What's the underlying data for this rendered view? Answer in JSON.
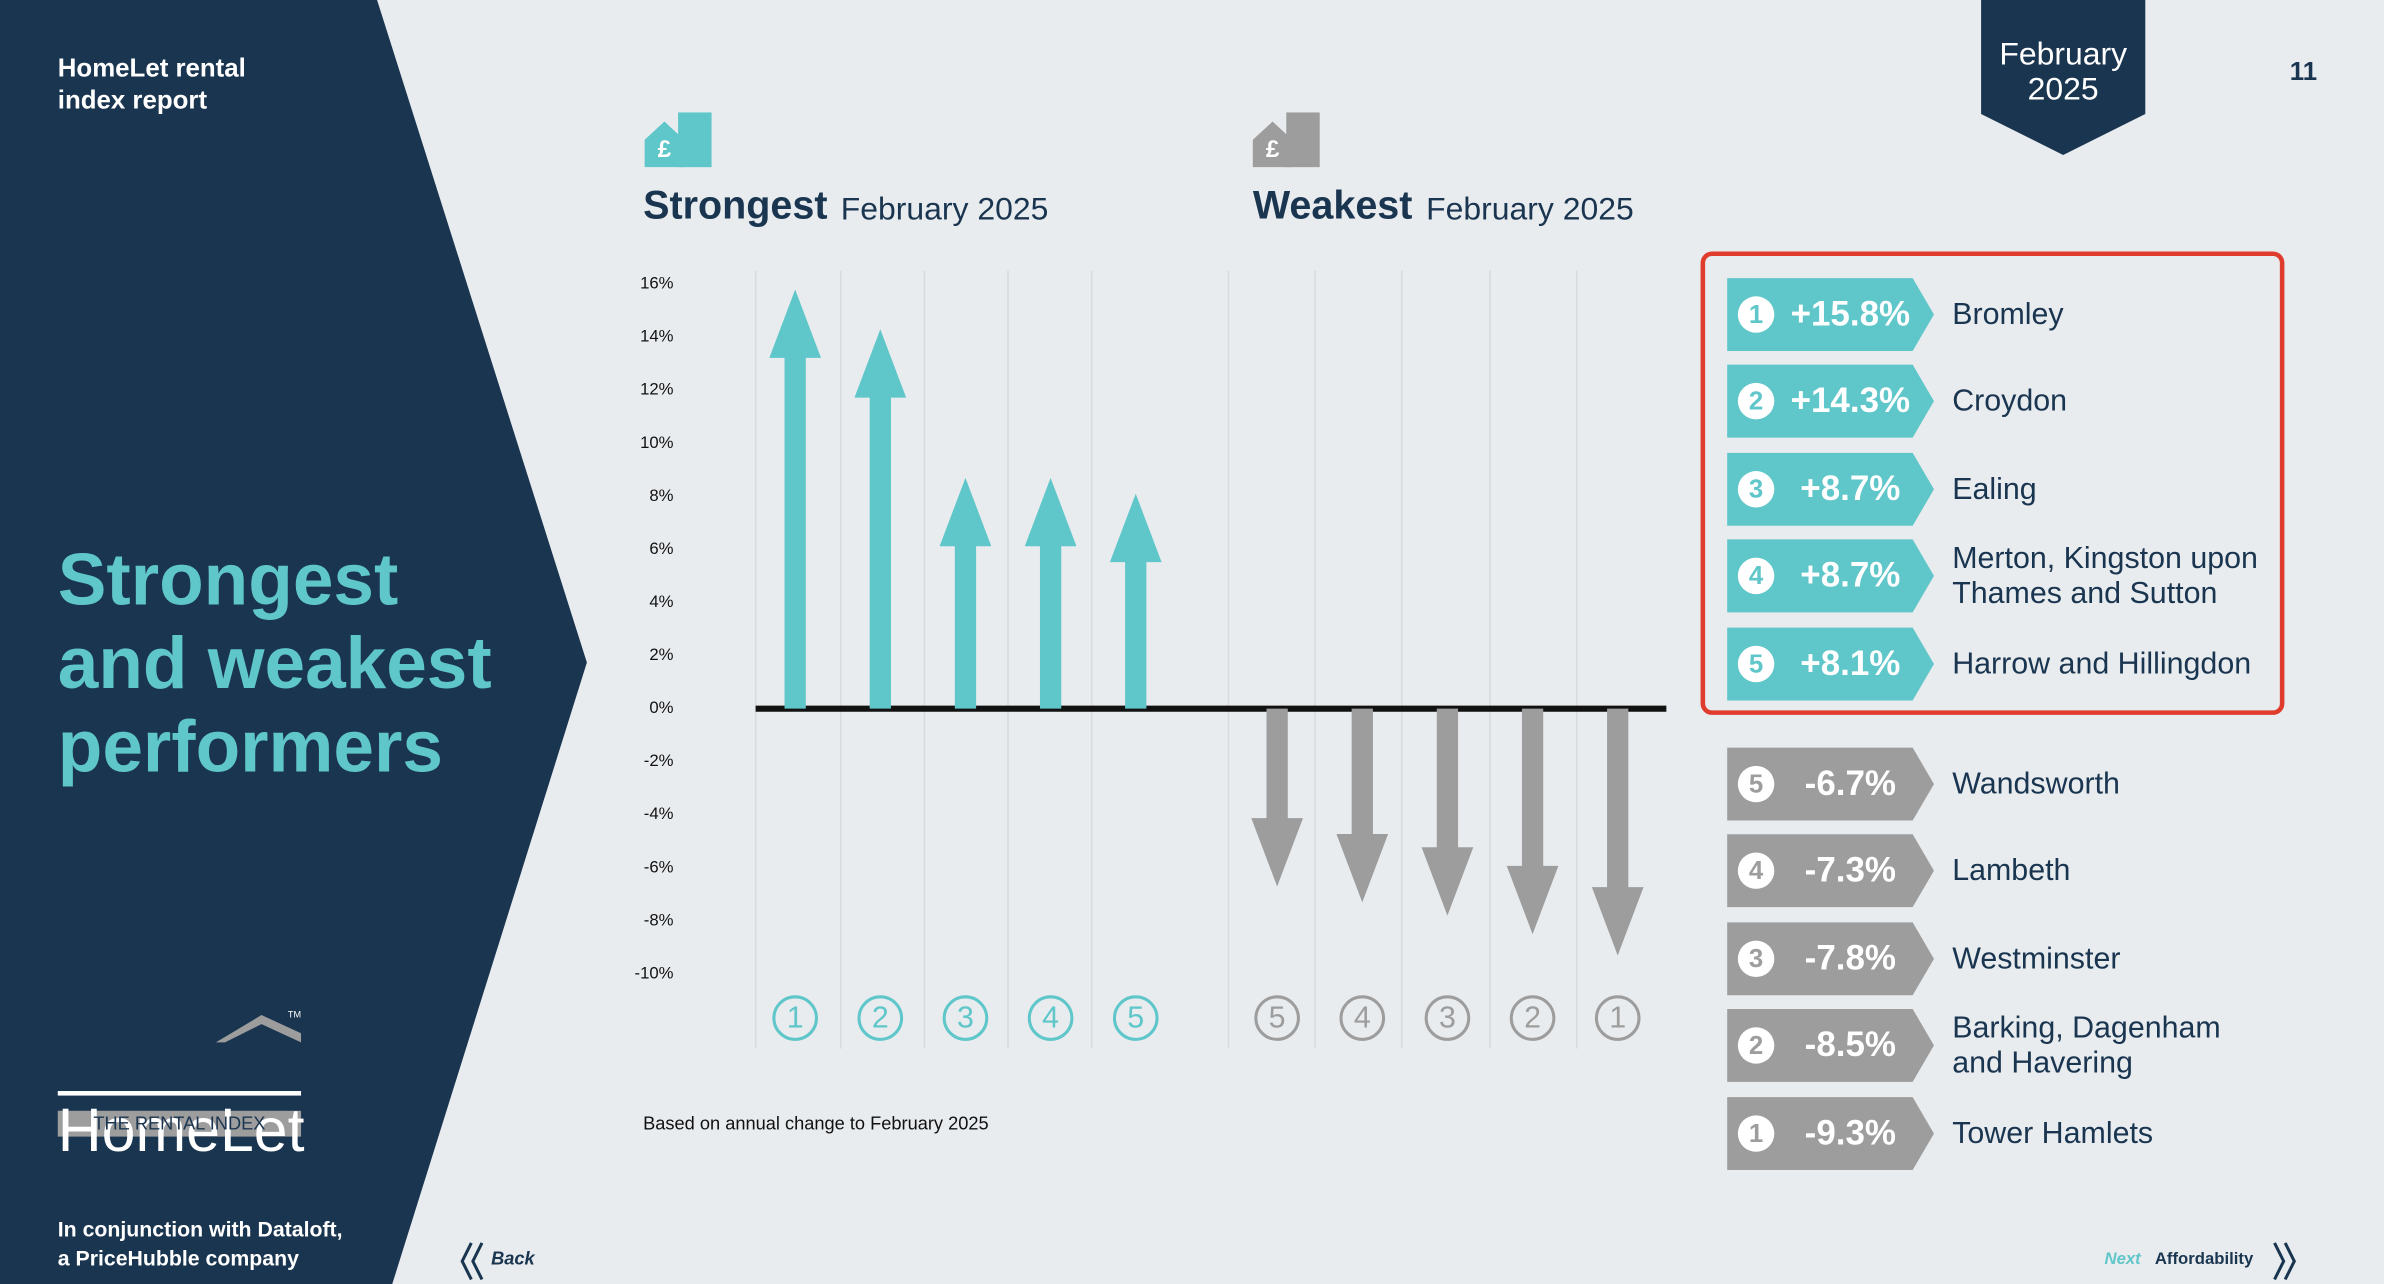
{
  "header": {
    "report": [
      "HomeLet rental",
      "index report"
    ],
    "badge": [
      "February",
      "2025"
    ],
    "page": "11"
  },
  "side": {
    "heading": [
      "Strongest",
      "and weakest",
      "performers"
    ],
    "logo": "HomeLet",
    "trademark": "TM",
    "logo_tag": "THE RENTAL INDEX",
    "credit": [
      "In conjunction with Dataloft,",
      "a PriceHubble company"
    ]
  },
  "nav": {
    "back": "Back",
    "next": "Next",
    "next_title": "Affordability"
  },
  "chart_data": {
    "type": "bar",
    "ylim": [
      -10,
      16
    ],
    "yticks": [
      {
        "value": 16,
        "label": "16%"
      },
      {
        "value": 14,
        "label": "14%"
      },
      {
        "value": 12,
        "label": "12%"
      },
      {
        "value": 10,
        "label": "10%"
      },
      {
        "value": 8,
        "label": "8%"
      },
      {
        "value": 6,
        "label": "6%"
      },
      {
        "value": 4,
        "label": "4%"
      },
      {
        "value": 2,
        "label": "2%"
      },
      {
        "value": 0,
        "label": "0%"
      },
      {
        "value": -2,
        "label": "-2%"
      },
      {
        "value": -4,
        "label": "-4%"
      },
      {
        "value": -6,
        "label": "-6%"
      },
      {
        "value": -8,
        "label": "-8%"
      },
      {
        "value": -10,
        "label": "-10%"
      }
    ],
    "note": "Based on annual change to February 2025",
    "groups": [
      {
        "heading": "Strongest",
        "period": "February 2025",
        "color": "#5fc6c9",
        "ranks": [
          "1",
          "2",
          "3",
          "4",
          "5"
        ],
        "areas": [
          [
            "Bromley"
          ],
          [
            "Croydon"
          ],
          [
            "Ealing"
          ],
          [
            "Merton, Kingston upon",
            "Thames and Sutton"
          ],
          [
            "Harrow and Hillingdon"
          ]
        ],
        "values": [
          15.8,
          14.3,
          8.7,
          8.7,
          8.1
        ],
        "value_labels": [
          "+15.8%",
          "+14.3%",
          "+8.7%",
          "+8.7%",
          "+8.1%"
        ]
      },
      {
        "heading": "Weakest",
        "period": "February 2025",
        "color": "#9d9d9d",
        "ranks": [
          "5",
          "4",
          "3",
          "2",
          "1"
        ],
        "areas": [
          [
            "Wandsworth"
          ],
          [
            "Lambeth"
          ],
          [
            "Westminster"
          ],
          [
            "Barking, Dagenham",
            "and Havering"
          ],
          [
            "Tower Hamlets"
          ]
        ],
        "values": [
          -6.7,
          -7.3,
          -7.8,
          -8.5,
          -9.3
        ],
        "value_labels": [
          "-6.7%",
          "-7.3%",
          "-7.8%",
          "-8.5%",
          "-9.3%"
        ]
      }
    ]
  }
}
